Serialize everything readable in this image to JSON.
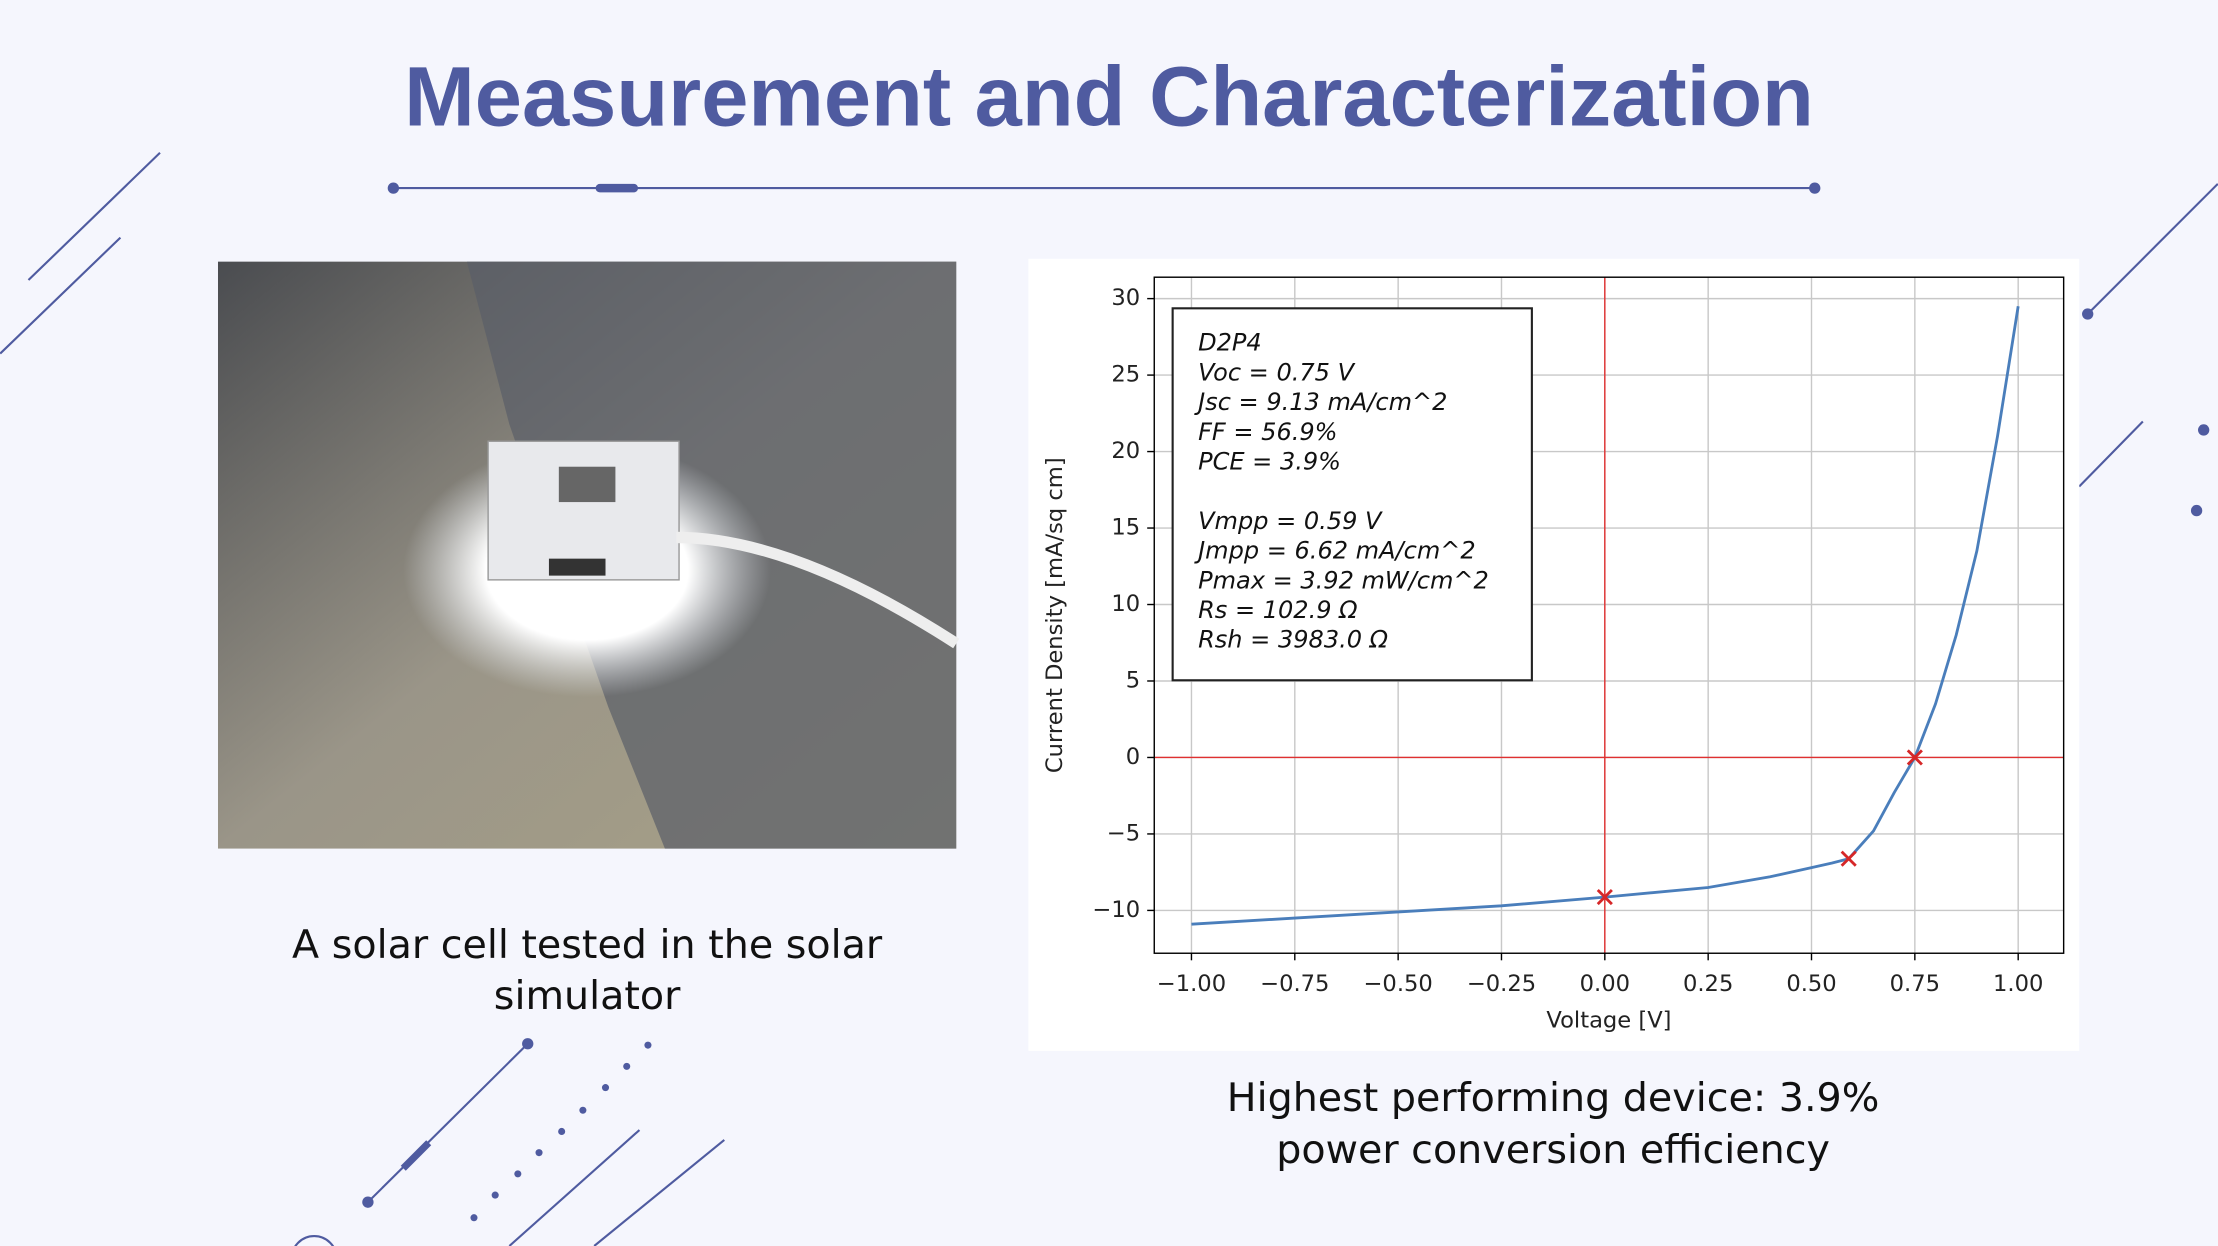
{
  "title": "Measurement and Characterization",
  "photo_caption": [
    "A solar cell tested in the solar",
    "simulator"
  ],
  "chart_caption": [
    "Highest performing device: 3.9%",
    "power conversion efficiency"
  ],
  "chart_data": {
    "type": "line",
    "xlabel": "Voltage [V]",
    "ylabel": "Current Density [mA/sq cm]",
    "x": [
      -1.0,
      -0.75,
      -0.5,
      -0.25,
      0,
      0.25,
      0.4,
      0.5,
      0.55,
      0.59,
      0.65,
      0.7,
      0.75,
      0.8,
      0.85,
      0.9,
      0.95,
      1.0
    ],
    "series": [
      {
        "color": "#4a7ebb",
        "values": [
          -10.9,
          -10.5,
          -10.1,
          -9.7,
          -9.13,
          -8.5,
          -7.8,
          -7.2,
          -6.9,
          -6.62,
          -4.8,
          -2.3,
          0,
          3.5,
          8,
          13.5,
          21,
          29.5
        ]
      },
      {
        "color": "#d62728",
        "marker": "x",
        "x": [
          0,
          0.59,
          0.75
        ],
        "values": [
          -9.13,
          -6.62,
          0
        ]
      }
    ],
    "xlim": [
      -1.09,
      1.11
    ],
    "ylim": [
      -12.8,
      31.4
    ],
    "xticks": [
      {
        "value": -1,
        "label": "−1.00"
      },
      {
        "value": -0.75,
        "label": "−0.75"
      },
      {
        "value": -0.5,
        "label": "−0.50"
      },
      {
        "value": -0.25,
        "label": "−0.25"
      },
      {
        "value": 0,
        "label": "0.00"
      },
      {
        "value": 0.25,
        "label": "0.25"
      },
      {
        "value": 0.5,
        "label": "0.50"
      },
      {
        "value": 0.75,
        "label": "0.75"
      },
      {
        "value": 1,
        "label": "1.00"
      }
    ],
    "yticks": [
      {
        "value": -10,
        "label": "−10"
      },
      {
        "value": -5,
        "label": "−5"
      },
      0,
      5,
      10,
      15,
      20,
      25,
      30
    ],
    "grid": true,
    "zero_lines": true,
    "zero_line_color": "#e03030",
    "annotation": [
      [
        "D2P4",
        "Voc = 0.75 V",
        "Jsc = 9.13 mA/cm^2",
        "FF = 56.9%",
        "PCE = 3.9%"
      ],
      [
        "Vmpp = 0.59 V",
        "Jmpp = 6.62 mA/cm^2",
        "Pmax = 3.92 mW/cm^2",
        "Rs = 102.9 Ω",
        "Rsh = 3983.0 Ω"
      ]
    ]
  }
}
